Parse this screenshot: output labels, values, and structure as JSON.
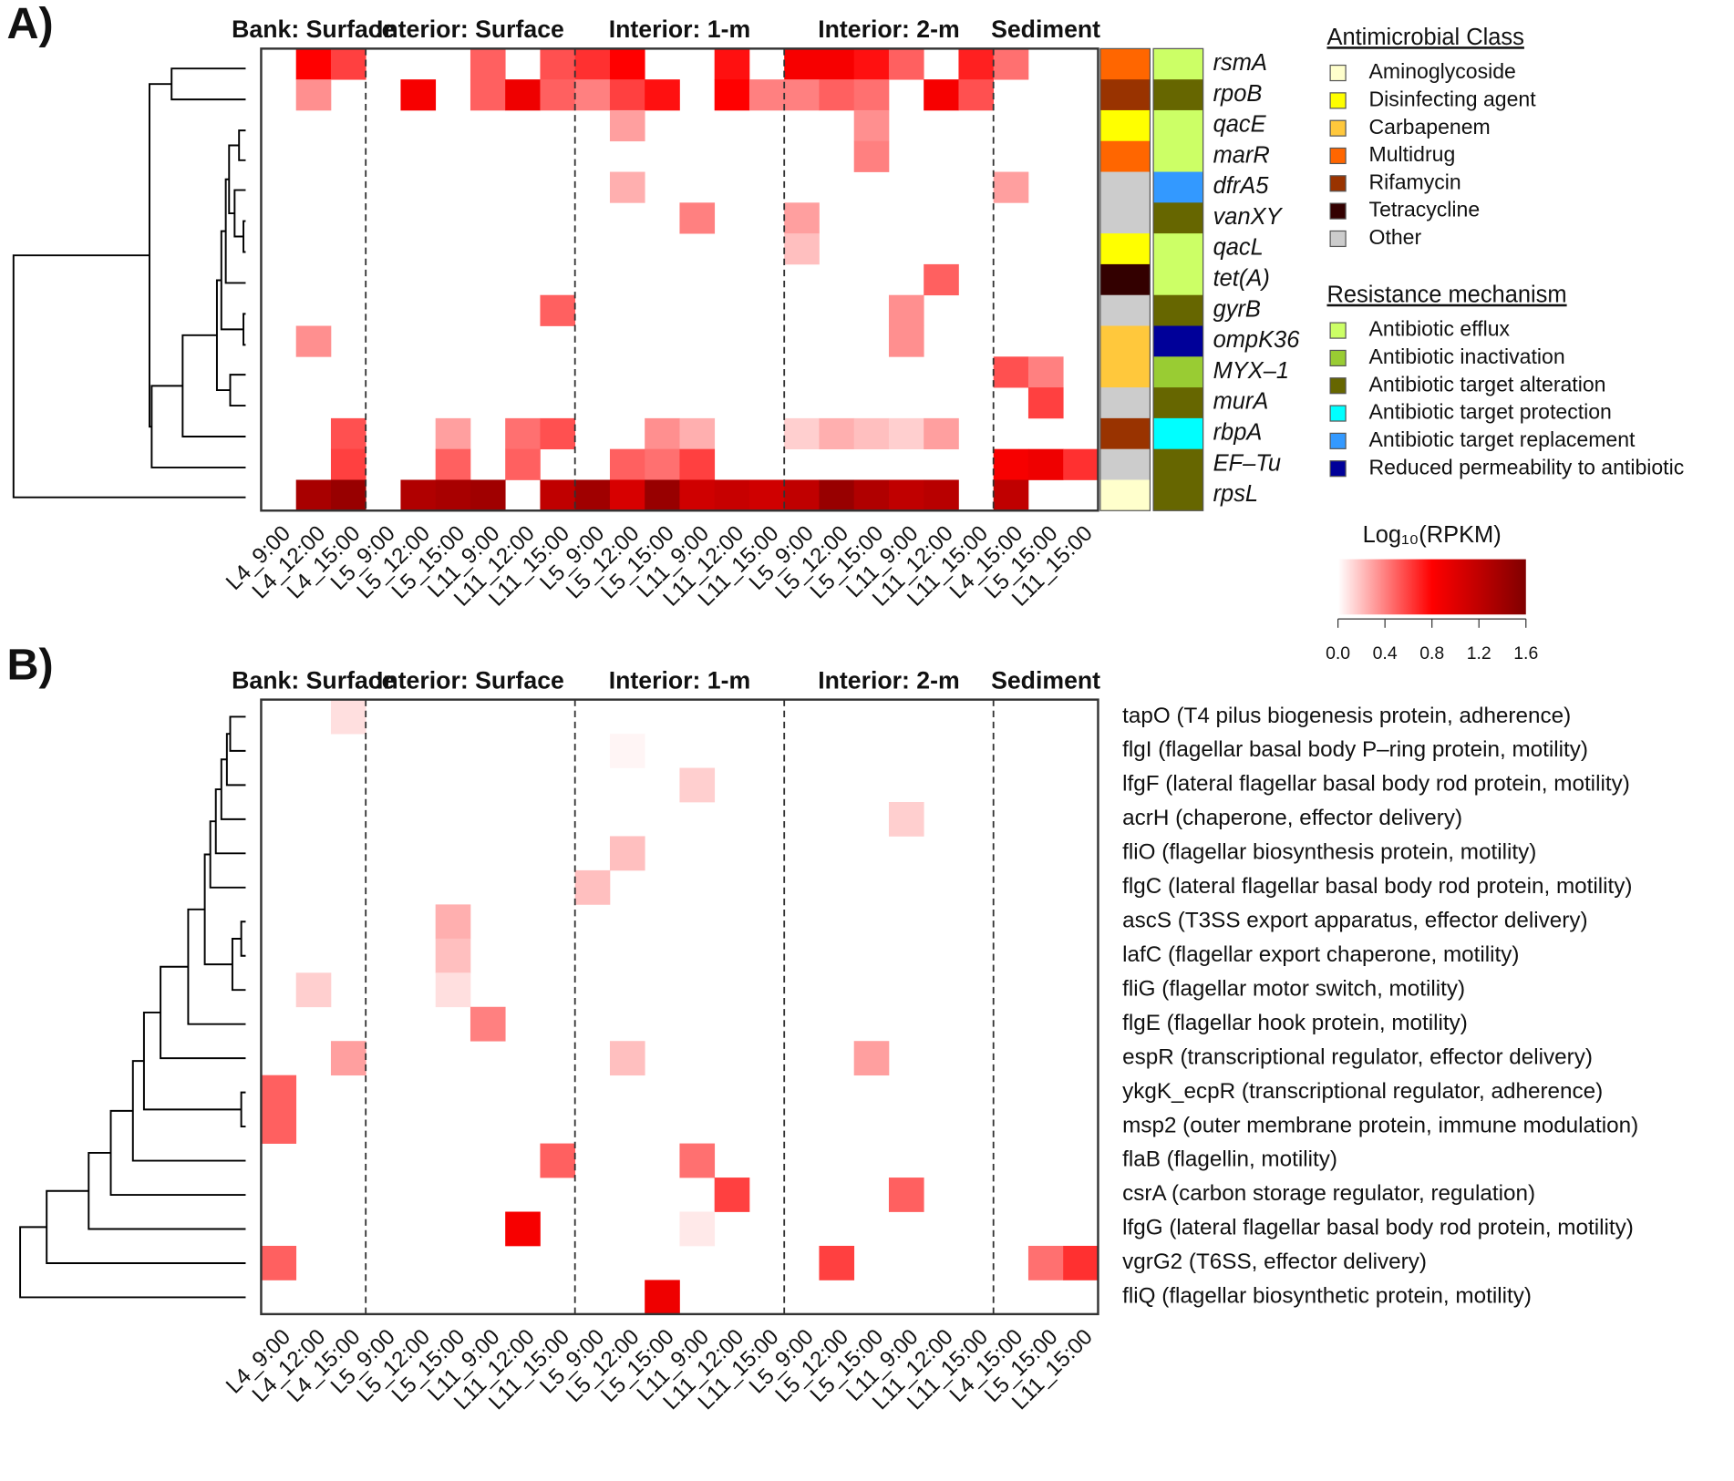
{
  "chart_data": [
    {
      "type": "heatmap",
      "panel_label": "A)",
      "groups": [
        {
          "name": "Bank: Surface",
          "columns": 3
        },
        {
          "name": "Interior: Surface",
          "columns": 6
        },
        {
          "name": "Interior: 1-m",
          "columns": 6
        },
        {
          "name": "Interior: 2-m",
          "columns": 6
        },
        {
          "name": "Sediment",
          "columns": 3
        }
      ],
      "columns": [
        "L4_9:00",
        "L4_12:00",
        "L4_15:00",
        "L5_9:00",
        "L5_12:00",
        "L5_15:00",
        "L11_9:00",
        "L11_12:00",
        "L11_15:00",
        "L5_9:00",
        "L5_12:00",
        "L5_15:00",
        "L11_9:00",
        "L11_12:00",
        "L11_15:00",
        "L5_9:00",
        "L5_12:00",
        "L5_15:00",
        "L11_9:00",
        "L11_12:00",
        "L11_15:00",
        "L4_15:00",
        "L5_15:00",
        "L11_15:00"
      ],
      "rows": [
        "rsmA",
        "rpoB",
        "qacE",
        "marR",
        "dfrA5",
        "vanXY",
        "qacL",
        "tet(A)",
        "gyrB",
        "ompK36",
        "MYX–1",
        "murA",
        "rbpA",
        "EF–Tu",
        "rpsL"
      ],
      "values": [
        [
          null,
          0.8,
          0.6,
          null,
          null,
          null,
          0.5,
          null,
          0.55,
          0.65,
          0.8,
          null,
          null,
          0.75,
          null,
          0.85,
          0.85,
          0.75,
          0.5,
          null,
          0.7,
          0.45,
          null,
          null
        ],
        [
          null,
          0.35,
          null,
          null,
          0.85,
          null,
          0.5,
          0.9,
          0.5,
          0.4,
          0.6,
          0.75,
          null,
          0.8,
          0.4,
          0.4,
          0.5,
          0.45,
          null,
          0.85,
          0.55,
          null,
          null,
          null
        ],
        [
          null,
          null,
          null,
          null,
          null,
          null,
          null,
          null,
          null,
          null,
          0.3,
          null,
          null,
          null,
          null,
          null,
          null,
          0.35,
          null,
          null,
          null,
          null,
          null,
          null
        ],
        [
          null,
          null,
          null,
          null,
          null,
          null,
          null,
          null,
          null,
          null,
          null,
          null,
          null,
          null,
          null,
          null,
          null,
          0.4,
          null,
          null,
          null,
          null,
          null,
          null
        ],
        [
          null,
          null,
          null,
          null,
          null,
          null,
          null,
          null,
          null,
          null,
          0.25,
          null,
          null,
          null,
          null,
          null,
          null,
          null,
          null,
          null,
          null,
          0.3,
          null,
          null
        ],
        [
          null,
          null,
          null,
          null,
          null,
          null,
          null,
          null,
          null,
          null,
          null,
          null,
          0.4,
          null,
          null,
          0.3,
          null,
          null,
          null,
          null,
          null,
          null,
          null,
          null
        ],
        [
          null,
          null,
          null,
          null,
          null,
          null,
          null,
          null,
          null,
          null,
          null,
          null,
          null,
          null,
          null,
          0.2,
          null,
          null,
          null,
          null,
          null,
          null,
          null,
          null
        ],
        [
          null,
          null,
          null,
          null,
          null,
          null,
          null,
          null,
          null,
          null,
          null,
          null,
          null,
          null,
          null,
          null,
          null,
          null,
          null,
          0.5,
          null,
          null,
          null,
          null
        ],
        [
          null,
          null,
          null,
          null,
          null,
          null,
          null,
          null,
          0.5,
          null,
          null,
          null,
          null,
          null,
          null,
          null,
          null,
          null,
          0.35,
          null,
          null,
          null,
          null,
          null
        ],
        [
          null,
          0.35,
          null,
          null,
          null,
          null,
          null,
          null,
          null,
          null,
          null,
          null,
          null,
          null,
          null,
          null,
          null,
          null,
          0.35,
          null,
          null,
          null,
          null,
          null
        ],
        [
          null,
          null,
          null,
          null,
          null,
          null,
          null,
          null,
          null,
          null,
          null,
          null,
          null,
          null,
          null,
          null,
          null,
          null,
          null,
          null,
          null,
          0.55,
          0.4,
          null
        ],
        [
          null,
          null,
          null,
          null,
          null,
          null,
          null,
          null,
          null,
          null,
          null,
          null,
          null,
          null,
          null,
          null,
          null,
          null,
          null,
          null,
          null,
          null,
          0.6,
          null
        ],
        [
          null,
          null,
          0.55,
          null,
          null,
          0.3,
          null,
          0.45,
          0.55,
          null,
          null,
          0.35,
          0.25,
          null,
          null,
          0.15,
          0.25,
          0.2,
          0.15,
          0.3,
          null,
          null,
          null,
          null
        ],
        [
          null,
          null,
          0.6,
          null,
          null,
          0.5,
          null,
          0.5,
          null,
          null,
          0.5,
          0.45,
          0.6,
          null,
          null,
          null,
          null,
          null,
          null,
          null,
          null,
          0.85,
          0.9,
          0.65
        ],
        [
          null,
          1.35,
          1.45,
          null,
          1.3,
          1.35,
          1.4,
          null,
          1.2,
          1.4,
          1.05,
          1.45,
          1.1,
          1.15,
          1.1,
          1.2,
          1.45,
          1.3,
          1.2,
          1.25,
          null,
          1.2,
          null,
          null
        ]
      ],
      "row_class": [
        "Multidrug",
        "Rifamycin",
        "Disinfecting agent",
        "Multidrug",
        "Other",
        "Other",
        "Disinfecting agent",
        "Tetracycline",
        "Other",
        "Carbapenem",
        "Carbapenem",
        "Other",
        "Rifamycin",
        "Other",
        "Aminoglycoside"
      ],
      "row_mechanism": [
        "Antibiotic efflux",
        "Antibiotic target alteration",
        "Antibiotic efflux",
        "Antibiotic efflux",
        "Antibiotic target replacement",
        "Antibiotic target alteration",
        "Antibiotic efflux",
        "Antibiotic efflux",
        "Antibiotic target alteration",
        "Reduced permeability to antibiotic",
        "Antibiotic inactivation",
        "Antibiotic target alteration",
        "Antibiotic target protection",
        "Antibiotic target alteration",
        "Antibiotic target alteration"
      ],
      "class_legend": {
        "title": "Antimicrobial Class",
        "items": [
          {
            "name": "Aminoglycoside",
            "color": "#FFFFCC"
          },
          {
            "name": "Disinfecting agent",
            "color": "#FFFF00"
          },
          {
            "name": "Carbapenem",
            "color": "#FFC83C"
          },
          {
            "name": "Multidrug",
            "color": "#FF6600"
          },
          {
            "name": "Rifamycin",
            "color": "#993300"
          },
          {
            "name": "Tetracycline",
            "color": "#330000"
          },
          {
            "name": "Other",
            "color": "#CCCCCC"
          }
        ]
      },
      "mechanism_legend": {
        "title": "Resistance mechanism",
        "items": [
          {
            "name": "Antibiotic efflux",
            "color": "#CCFF66"
          },
          {
            "name": "Antibiotic inactivation",
            "color": "#99CC33"
          },
          {
            "name": "Antibiotic target alteration",
            "color": "#666600"
          },
          {
            "name": "Antibiotic target protection",
            "color": "#00FFFF"
          },
          {
            "name": "Antibiotic target replacement",
            "color": "#3399FF"
          },
          {
            "name": "Reduced permeability to antibiotic",
            "color": "#000099"
          }
        ]
      },
      "colorbar": {
        "title": "Log₁₀(RPKM)",
        "colors": [
          "#FFFFFF",
          "#FF0000",
          "#800000"
        ],
        "lim": [
          0,
          1.6
        ],
        "ticks": [
          {
            "value": 0,
            "label": "0.0"
          },
          0.4,
          0.8,
          1.2,
          1.6
        ]
      }
    },
    {
      "type": "heatmap",
      "panel_label": "B)",
      "groups": [
        {
          "name": "Bank: Surface",
          "columns": 3
        },
        {
          "name": "Interior: Surface",
          "columns": 6
        },
        {
          "name": "Interior: 1-m",
          "columns": 6
        },
        {
          "name": "Interior: 2-m",
          "columns": 6
        },
        {
          "name": "Sediment",
          "columns": 3
        }
      ],
      "columns": [
        "L4_9:00",
        "L4_12:00",
        "L4_15:00",
        "L5_9:00",
        "L5_12:00",
        "L5_15:00",
        "L11_9:00",
        "L11_12:00",
        "L11_15:00",
        "L5_9:00",
        "L5_12:00",
        "L5_15:00",
        "L11_9:00",
        "L11_12:00",
        "L11_15:00",
        "L5_9:00",
        "L5_12:00",
        "L5_15:00",
        "L11_9:00",
        "L11_12:00",
        "L11_15:00",
        "L4_15:00",
        "L5_15:00",
        "L11_15:00"
      ],
      "rows": [
        "tapO (T4 pilus biogenesis protein, adherence)",
        "flgI (flagellar basal body P–ring protein, motility)",
        "lfgF (lateral flagellar basal body rod protein, motility)",
        "acrH (chaperone, effector delivery)",
        "fliO (flagellar biosynthesis protein, motility)",
        "flgC (lateral flagellar basal body rod protein, motility)",
        "ascS (T3SS export apparatus, effector delivery)",
        "lafC (flagellar export chaperone, motility)",
        "fliG (flagellar motor switch, motility)",
        "flgE (flagellar hook protein, motility)",
        "espR (transcriptional regulator, effector delivery)",
        "ykgK_ecpR (transcriptional regulator, adherence)",
        "msp2 (outer membrane protein, immune modulation)",
        "flaB (flagellin, motility)",
        "csrA (carbon storage regulator, regulation)",
        "lfgG (lateral flagellar basal body rod protein, motility)",
        "vgrG2 (T6SS, effector delivery)",
        "fliQ (flagellar biosynthetic protein, motility)"
      ],
      "values": [
        [
          null,
          null,
          0.1,
          null,
          null,
          null,
          null,
          null,
          null,
          null,
          null,
          null,
          null,
          null,
          null,
          null,
          null,
          null,
          null,
          null,
          null,
          null,
          null,
          null
        ],
        [
          null,
          null,
          null,
          null,
          null,
          null,
          null,
          null,
          null,
          null,
          0.03,
          null,
          null,
          null,
          null,
          null,
          null,
          null,
          null,
          null,
          null,
          null,
          null,
          null
        ],
        [
          null,
          null,
          null,
          null,
          null,
          null,
          null,
          null,
          null,
          null,
          null,
          null,
          0.15,
          null,
          null,
          null,
          null,
          null,
          null,
          null,
          null,
          null,
          null,
          null
        ],
        [
          null,
          null,
          null,
          null,
          null,
          null,
          null,
          null,
          null,
          null,
          null,
          null,
          null,
          null,
          null,
          null,
          null,
          null,
          0.15,
          null,
          null,
          null,
          null,
          null
        ],
        [
          null,
          null,
          null,
          null,
          null,
          null,
          null,
          null,
          null,
          null,
          0.2,
          null,
          null,
          null,
          null,
          null,
          null,
          null,
          null,
          null,
          null,
          null,
          null,
          null
        ],
        [
          null,
          null,
          null,
          null,
          null,
          null,
          null,
          null,
          null,
          0.2,
          null,
          null,
          null,
          null,
          null,
          null,
          null,
          null,
          null,
          null,
          null,
          null,
          null,
          null
        ],
        [
          null,
          null,
          null,
          null,
          null,
          0.25,
          null,
          null,
          null,
          null,
          null,
          null,
          null,
          null,
          null,
          null,
          null,
          null,
          null,
          null,
          null,
          null,
          null,
          null
        ],
        [
          null,
          null,
          null,
          null,
          null,
          0.2,
          null,
          null,
          null,
          null,
          null,
          null,
          null,
          null,
          null,
          null,
          null,
          null,
          null,
          null,
          null,
          null,
          null,
          null
        ],
        [
          null,
          0.15,
          null,
          null,
          null,
          0.1,
          null,
          null,
          null,
          null,
          null,
          null,
          null,
          null,
          null,
          null,
          null,
          null,
          null,
          null,
          null,
          null,
          null,
          null
        ],
        [
          null,
          null,
          null,
          null,
          null,
          null,
          0.4,
          null,
          null,
          null,
          null,
          null,
          null,
          null,
          null,
          null,
          null,
          null,
          null,
          null,
          null,
          null,
          null,
          null
        ],
        [
          null,
          null,
          0.3,
          null,
          null,
          null,
          null,
          null,
          null,
          null,
          0.2,
          null,
          null,
          null,
          null,
          null,
          null,
          0.3,
          null,
          null,
          null,
          null,
          null,
          null
        ],
        [
          0.5,
          null,
          null,
          null,
          null,
          null,
          null,
          null,
          null,
          null,
          null,
          null,
          null,
          null,
          null,
          null,
          null,
          null,
          null,
          null,
          null,
          null,
          null,
          null
        ],
        [
          0.5,
          null,
          null,
          null,
          null,
          null,
          null,
          null,
          null,
          null,
          null,
          null,
          null,
          null,
          null,
          null,
          null,
          null,
          null,
          null,
          null,
          null,
          null,
          null
        ],
        [
          null,
          null,
          null,
          null,
          null,
          null,
          null,
          null,
          0.5,
          null,
          null,
          null,
          0.45,
          null,
          null,
          null,
          null,
          null,
          null,
          null,
          null,
          null,
          null,
          null
        ],
        [
          null,
          null,
          null,
          null,
          null,
          null,
          null,
          null,
          null,
          null,
          null,
          null,
          null,
          0.6,
          null,
          null,
          null,
          null,
          0.5,
          null,
          null,
          null,
          null,
          null
        ],
        [
          null,
          null,
          null,
          null,
          null,
          null,
          null,
          0.85,
          null,
          null,
          null,
          null,
          0.07,
          null,
          null,
          null,
          null,
          null,
          null,
          null,
          null,
          null,
          null,
          null
        ],
        [
          0.5,
          null,
          null,
          null,
          null,
          null,
          null,
          null,
          null,
          null,
          null,
          null,
          null,
          null,
          null,
          null,
          0.6,
          null,
          null,
          null,
          null,
          null,
          0.45,
          0.65
        ],
        [
          null,
          null,
          null,
          null,
          null,
          null,
          null,
          null,
          null,
          null,
          null,
          0.9,
          null,
          null,
          null,
          null,
          null,
          null,
          null,
          null,
          null,
          null,
          null,
          null
        ]
      ]
    }
  ]
}
